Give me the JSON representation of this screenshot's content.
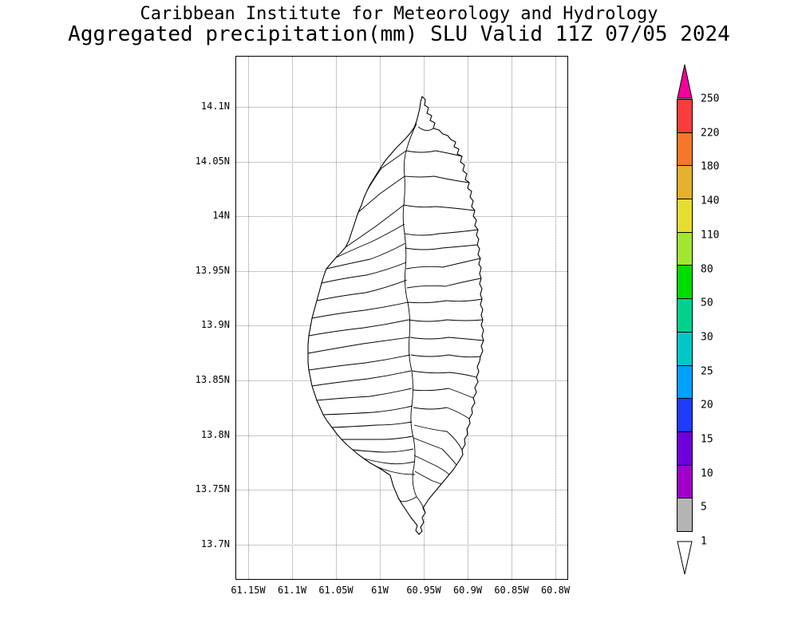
{
  "title": {
    "line1": "Caribbean Institute for Meteorology and Hydrology",
    "line2": "Aggregated precipitation(mm) SLU Valid 11Z 07/05 2024"
  },
  "map": {
    "y_ticks": [
      "14.1N",
      "14.05N",
      "14N",
      "13.95N",
      "13.9N",
      "13.85N",
      "13.8N",
      "13.75N",
      "13.7N"
    ],
    "x_ticks": [
      "61.15W",
      "61.1W",
      "61.05W",
      "61W",
      "60.95W",
      "60.9W",
      "60.85W",
      "60.8W"
    ]
  },
  "colorbar": {
    "labels": [
      "250",
      "220",
      "180",
      "140",
      "110",
      "80",
      "50",
      "30",
      "25",
      "20",
      "15",
      "10",
      "5",
      "1"
    ],
    "top_triangle_color": "#f5009b",
    "bottom_triangle_color": "#ffffff",
    "segments": [
      "#fa3c3c",
      "#f57828",
      "#e6af2d",
      "#e6dc32",
      "#a0e632",
      "#00dc00",
      "#00d28c",
      "#00c8c8",
      "#00a0ff",
      "#1e3cff",
      "#6e00dc",
      "#a000c8",
      "#b4b4b4"
    ]
  },
  "chart_data": {
    "type": "map",
    "title": "Caribbean Institute for Meteorology and Hydrology",
    "subtitle": "Aggregated precipitation(mm) SLU Valid 11Z 07/05 2024",
    "region": "SLU (Saint Lucia)",
    "variable": "Aggregated precipitation (mm)",
    "valid_time": "11Z 07/05 2024",
    "lon_ticks_deg_west": [
      61.15,
      61.1,
      61.05,
      61.0,
      60.95,
      60.9,
      60.85,
      60.8
    ],
    "lat_ticks_deg_north": [
      14.1,
      14.05,
      14.0,
      13.95,
      13.9,
      13.85,
      13.8,
      13.75,
      13.7
    ],
    "grid": "dotted",
    "legend_position": "right",
    "scale_levels_mm": [
      1,
      5,
      10,
      15,
      20,
      25,
      30,
      50,
      80,
      110,
      140,
      180,
      220,
      250
    ],
    "scale_colors_low_to_high": [
      "#ffffff",
      "#b4b4b4",
      "#a000c8",
      "#6e00dc",
      "#1e3cff",
      "#00a0ff",
      "#00c8c8",
      "#00d28c",
      "#00dc00",
      "#a0e632",
      "#e6dc32",
      "#e6af2d",
      "#f57828",
      "#fa3c3c",
      "#f5009b"
    ],
    "map_fill": "no precipitation shading shown on island (white fill, watershed boundaries only)"
  }
}
